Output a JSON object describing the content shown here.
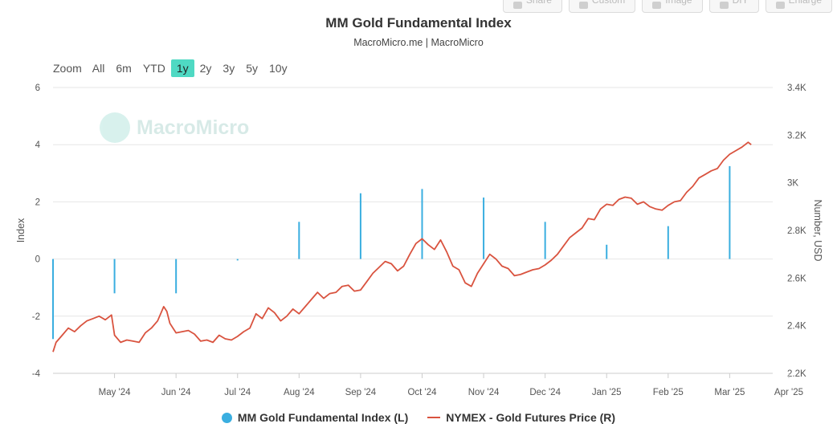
{
  "toolbar": [
    {
      "label": "Share",
      "icon": "share-icon"
    },
    {
      "label": "Custom",
      "icon": "gear-icon"
    },
    {
      "label": "Image",
      "icon": "image-icon"
    },
    {
      "label": "DIY",
      "icon": "pencil-icon"
    },
    {
      "label": "Enlarge",
      "icon": "enlarge-icon"
    }
  ],
  "zoom": {
    "label": "Zoom",
    "options": [
      "All",
      "6m",
      "YTD",
      "1y",
      "2y",
      "3y",
      "5y",
      "10y"
    ],
    "active": "1y"
  },
  "watermark": "MacroMicro",
  "chart_data": {
    "type": "combo",
    "title": "MM Gold Fundamental Index",
    "subtitle": "MacroMicro.me | MacroMicro",
    "left_axis": {
      "label": "Index",
      "ticks": [
        6,
        4,
        2,
        0,
        -2,
        -4
      ],
      "range": [
        -4,
        6
      ]
    },
    "right_axis": {
      "label": "Number, USD",
      "ticks": [
        "3.4K",
        "3.2K",
        "3K",
        "2.8K",
        "2.6K",
        "2.4K",
        "2.2K"
      ],
      "range": [
        2200,
        3400
      ]
    },
    "x_ticks": [
      "May '24",
      "Jun '24",
      "Jul '24",
      "Aug '24",
      "Sep '24",
      "Oct '24",
      "Nov '24",
      "Dec '24",
      "Jan '25",
      "Feb '25",
      "Mar '25",
      "Apr '25"
    ],
    "x_start": "Apr '24",
    "colors": {
      "bars": "#3aaee0",
      "line": "#d9533f",
      "grid": "#e6e6e6",
      "highlight": "#4fd9c3"
    },
    "series": [
      {
        "name": "MM Gold Fundamental Index (L)",
        "kind": "bar",
        "axis": "left",
        "points": [
          {
            "month": 0,
            "value": -2.8
          },
          {
            "month": 1,
            "value": -1.2
          },
          {
            "month": 2,
            "value": -1.2
          },
          {
            "month": 3,
            "value": -0.05
          },
          {
            "month": 4,
            "value": 1.3
          },
          {
            "month": 5,
            "value": 2.3
          },
          {
            "month": 6,
            "value": 2.45
          },
          {
            "month": 7,
            "value": 2.15
          },
          {
            "month": 8,
            "value": 1.3
          },
          {
            "month": 9,
            "value": 0.5
          },
          {
            "month": 10,
            "value": 1.15
          },
          {
            "month": 11,
            "value": 3.25
          }
        ]
      },
      {
        "name": "NYMEX - Gold Futures Price (R)",
        "kind": "line",
        "axis": "right",
        "points": [
          [
            0.0,
            2290
          ],
          [
            0.05,
            2330
          ],
          [
            0.15,
            2360
          ],
          [
            0.25,
            2390
          ],
          [
            0.35,
            2375
          ],
          [
            0.45,
            2400
          ],
          [
            0.55,
            2420
          ],
          [
            0.65,
            2430
          ],
          [
            0.75,
            2440
          ],
          [
            0.85,
            2425
          ],
          [
            0.95,
            2445
          ],
          [
            1.0,
            2360
          ],
          [
            1.1,
            2330
          ],
          [
            1.2,
            2340
          ],
          [
            1.3,
            2335
          ],
          [
            1.4,
            2330
          ],
          [
            1.5,
            2370
          ],
          [
            1.6,
            2390
          ],
          [
            1.7,
            2420
          ],
          [
            1.75,
            2450
          ],
          [
            1.8,
            2480
          ],
          [
            1.85,
            2460
          ],
          [
            1.9,
            2410
          ],
          [
            1.95,
            2390
          ],
          [
            2.0,
            2370
          ],
          [
            2.1,
            2375
          ],
          [
            2.2,
            2380
          ],
          [
            2.3,
            2365
          ],
          [
            2.4,
            2335
          ],
          [
            2.5,
            2340
          ],
          [
            2.6,
            2330
          ],
          [
            2.7,
            2360
          ],
          [
            2.8,
            2345
          ],
          [
            2.9,
            2340
          ],
          [
            3.0,
            2355
          ],
          [
            3.1,
            2375
          ],
          [
            3.2,
            2390
          ],
          [
            3.3,
            2450
          ],
          [
            3.4,
            2430
          ],
          [
            3.5,
            2475
          ],
          [
            3.6,
            2455
          ],
          [
            3.7,
            2420
          ],
          [
            3.8,
            2440
          ],
          [
            3.9,
            2470
          ],
          [
            4.0,
            2450
          ],
          [
            4.1,
            2480
          ],
          [
            4.2,
            2510
          ],
          [
            4.3,
            2540
          ],
          [
            4.4,
            2515
          ],
          [
            4.5,
            2535
          ],
          [
            4.6,
            2540
          ],
          [
            4.7,
            2565
          ],
          [
            4.8,
            2570
          ],
          [
            4.9,
            2545
          ],
          [
            5.0,
            2550
          ],
          [
            5.1,
            2585
          ],
          [
            5.2,
            2620
          ],
          [
            5.3,
            2645
          ],
          [
            5.4,
            2670
          ],
          [
            5.5,
            2660
          ],
          [
            5.6,
            2630
          ],
          [
            5.7,
            2650
          ],
          [
            5.8,
            2700
          ],
          [
            5.9,
            2745
          ],
          [
            6.0,
            2765
          ],
          [
            6.1,
            2740
          ],
          [
            6.2,
            2720
          ],
          [
            6.3,
            2760
          ],
          [
            6.4,
            2710
          ],
          [
            6.5,
            2650
          ],
          [
            6.6,
            2635
          ],
          [
            6.7,
            2580
          ],
          [
            6.8,
            2565
          ],
          [
            6.9,
            2620
          ],
          [
            7.0,
            2660
          ],
          [
            7.1,
            2700
          ],
          [
            7.2,
            2680
          ],
          [
            7.3,
            2650
          ],
          [
            7.4,
            2640
          ],
          [
            7.5,
            2610
          ],
          [
            7.6,
            2615
          ],
          [
            7.7,
            2625
          ],
          [
            7.8,
            2635
          ],
          [
            7.9,
            2640
          ],
          [
            8.0,
            2655
          ],
          [
            8.1,
            2675
          ],
          [
            8.2,
            2700
          ],
          [
            8.3,
            2735
          ],
          [
            8.4,
            2770
          ],
          [
            8.5,
            2790
          ],
          [
            8.6,
            2810
          ],
          [
            8.7,
            2850
          ],
          [
            8.8,
            2845
          ],
          [
            8.9,
            2890
          ],
          [
            9.0,
            2910
          ],
          [
            9.1,
            2905
          ],
          [
            9.2,
            2930
          ],
          [
            9.3,
            2940
          ],
          [
            9.4,
            2935
          ],
          [
            9.5,
            2910
          ],
          [
            9.6,
            2920
          ],
          [
            9.7,
            2900
          ],
          [
            9.8,
            2890
          ],
          [
            9.9,
            2885
          ],
          [
            10.0,
            2905
          ],
          [
            10.1,
            2920
          ],
          [
            10.2,
            2925
          ],
          [
            10.3,
            2960
          ],
          [
            10.4,
            2985
          ],
          [
            10.5,
            3020
          ],
          [
            10.6,
            3035
          ],
          [
            10.7,
            3050
          ],
          [
            10.8,
            3060
          ],
          [
            10.9,
            3095
          ],
          [
            11.0,
            3120
          ],
          [
            11.1,
            3135
          ],
          [
            11.2,
            3150
          ],
          [
            11.3,
            3170
          ],
          [
            11.35,
            3160
          ]
        ]
      }
    ]
  }
}
